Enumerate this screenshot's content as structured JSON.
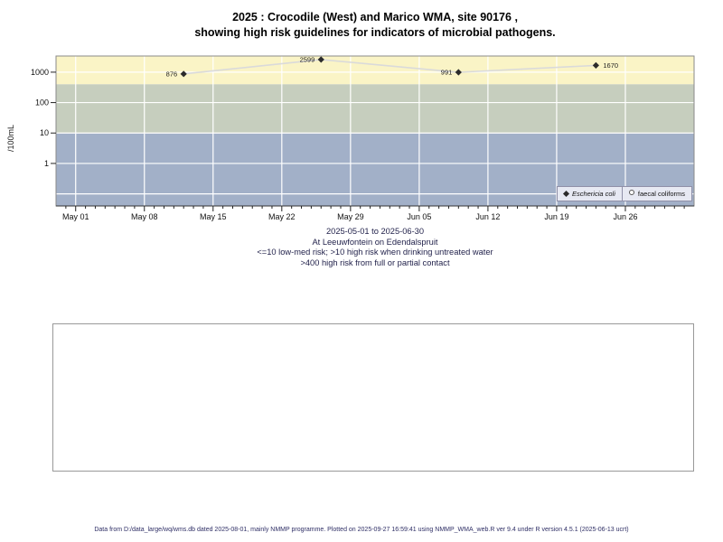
{
  "title": {
    "line1": "2025 : Crocodile (West) and Marico WMA, site 90176 ,",
    "line2": "showing high risk guidelines for indicators of microbial pathogens."
  },
  "chart_data": {
    "type": "line",
    "title": "2025 : Crocodile (West) and Marico WMA, site 90176, showing high risk guidelines for indicators of microbial pathogens.",
    "ylabel": "/100mL",
    "yscale": "log",
    "ylim": [
      0.04,
      3400
    ],
    "y_ticks": [
      1,
      10,
      100,
      1000
    ],
    "grid_y": [
      0.1,
      1,
      10,
      100,
      1000
    ],
    "grid_color": "#ffffff",
    "x_start": "2025-04-29",
    "x_end": "2025-07-03",
    "x_major_ticks": [
      {
        "date": "2025-05-01",
        "label": "May 01"
      },
      {
        "date": "2025-05-08",
        "label": "May 08"
      },
      {
        "date": "2025-05-15",
        "label": "May 15"
      },
      {
        "date": "2025-05-22",
        "label": "May 22"
      },
      {
        "date": "2025-05-29",
        "label": "May 29"
      },
      {
        "date": "2025-06-05",
        "label": "Jun 05"
      },
      {
        "date": "2025-06-12",
        "label": "Jun 12"
      },
      {
        "date": "2025-06-19",
        "label": "Jun 19"
      },
      {
        "date": "2025-06-26",
        "label": "Jun 26"
      }
    ],
    "x_minor_tick_interval_days": 1,
    "risk_bands": [
      {
        "meaning": ">400 high risk from full or partial contact",
        "from": 400,
        "to": 3400,
        "color": "#faf4c6"
      },
      {
        "meaning": ">10 high risk when drinking untreated water",
        "from": 10,
        "to": 400,
        "color": "#c6cebe"
      },
      {
        "meaning": "<=10 low-med risk",
        "from": 0.04,
        "to": 10,
        "color": "#a2b0c8"
      }
    ],
    "series": [
      {
        "name": "Eschericia coli",
        "marker": "filled-diamond",
        "marker_color": "#2b2b2b",
        "line_color": "#dadada",
        "points": [
          {
            "date": "2025-05-12",
            "value": 876,
            "label": "876",
            "label_side": "left"
          },
          {
            "date": "2025-05-26",
            "value": 2599,
            "label": "2599",
            "label_side": "left"
          },
          {
            "date": "2025-06-09",
            "value": 991,
            "label": "991",
            "label_side": "left"
          },
          {
            "date": "2025-06-23",
            "value": 1670,
            "label": "1670",
            "label_side": "right"
          }
        ]
      },
      {
        "name": "faecal coliforms",
        "marker": "open-circle",
        "marker_color": "#2b2b2b",
        "line_color": "#dadada",
        "points": []
      }
    ],
    "legend": {
      "position": "bottom-right",
      "items": [
        {
          "label": "Eschericia coli",
          "marker": "filled-diamond",
          "italic": true
        },
        {
          "label": "faecal coliforms",
          "marker": "open-circle",
          "italic": false
        }
      ]
    }
  },
  "caption": {
    "date_range": "2025-05-01 to 2025-06-30",
    "site": "At Leeuwfontein on Edendalspruit",
    "risk_note_1": "<=10 low-med risk; >10 high risk when drinking untreated water",
    "risk_note_2": ">400 high risk from full or partial contact"
  },
  "footer": {
    "text": "Data from D:/data_large/wq/wms.db dated 2025-08-01, mainly NMMP programme. Plotted on 2025-09-27 16:59:41 using NMMP_WMA_web.R ver 9.4 under R version 4.5.1 (2025-06-13 ucrt)"
  }
}
